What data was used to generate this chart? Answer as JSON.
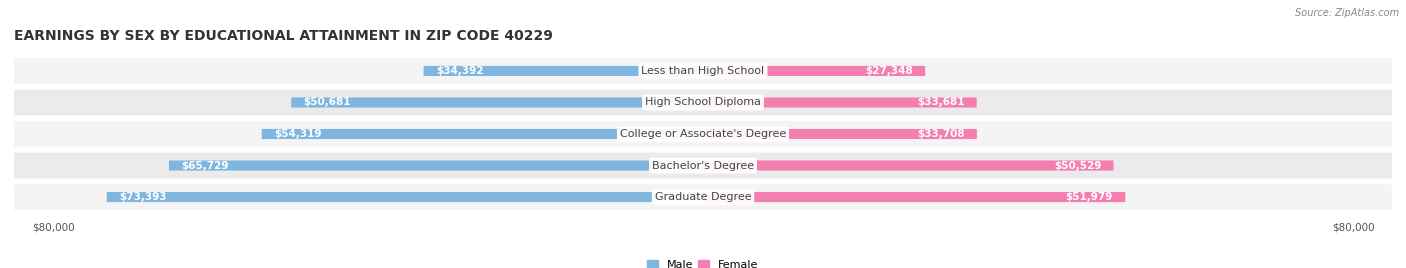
{
  "title": "EARNINGS BY SEX BY EDUCATIONAL ATTAINMENT IN ZIP CODE 40229",
  "source": "Source: ZipAtlas.com",
  "categories": [
    "Less than High School",
    "High School Diploma",
    "College or Associate's Degree",
    "Bachelor's Degree",
    "Graduate Degree"
  ],
  "male_values": [
    34392,
    50681,
    54319,
    65729,
    73393
  ],
  "female_values": [
    27348,
    33681,
    33708,
    50529,
    51979
  ],
  "male_color": "#7EB6E0",
  "female_color": "#F47EB0",
  "max_value": 80000,
  "axis_label": "$80,000",
  "title_fontsize": 10,
  "label_fontsize": 8,
  "value_fontsize": 7.5,
  "background_color": "#FFFFFF"
}
